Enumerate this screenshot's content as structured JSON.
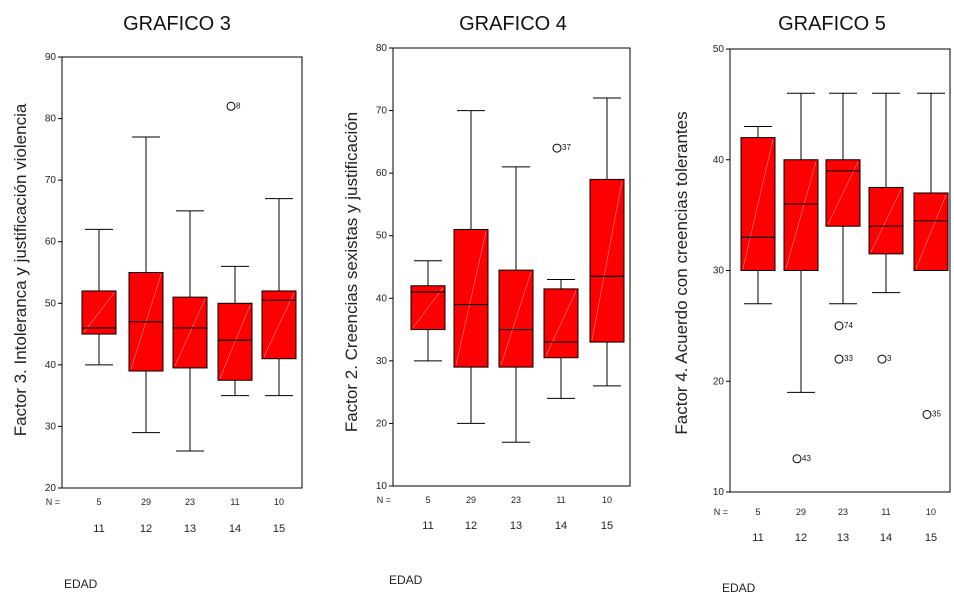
{
  "chart_data": [
    {
      "type": "boxplot",
      "title": "GRAFICO 3",
      "ylabel": "Factor 3. Intoleranca y justificación violencia",
      "xlabel": "EDAD",
      "n_label": "N =",
      "ylim": [
        20,
        90
      ],
      "yticks": [
        20,
        30,
        40,
        50,
        60,
        70,
        80,
        90
      ],
      "categories": [
        "11",
        "12",
        "13",
        "14",
        "15"
      ],
      "n": [
        "5",
        "29",
        "23",
        "11",
        "10"
      ],
      "boxes": [
        {
          "min": 40,
          "q1": 45,
          "median": 46,
          "q3": 52,
          "max": 62
        },
        {
          "min": 29,
          "q1": 39,
          "median": 47,
          "q3": 55,
          "max": 77
        },
        {
          "min": 26,
          "q1": 39.5,
          "median": 46,
          "q3": 51,
          "max": 65
        },
        {
          "min": 35,
          "q1": 37.5,
          "median": 44,
          "q3": 50,
          "max": 56
        },
        {
          "min": 35,
          "q1": 41,
          "median": 50.5,
          "q3": 52,
          "max": 67
        }
      ],
      "outliers": [
        {
          "category": "14",
          "value": 82,
          "label": "8"
        }
      ],
      "grid": false,
      "box_color": "#ff0000"
    },
    {
      "type": "boxplot",
      "title": "GRAFICO 4",
      "ylabel": "Factor 2. Creencias sexistas y justificación",
      "xlabel": "EDAD",
      "n_label": "N =",
      "ylim": [
        10,
        80
      ],
      "yticks": [
        10,
        20,
        30,
        40,
        50,
        60,
        70,
        80
      ],
      "categories": [
        "11",
        "12",
        "13",
        "14",
        "15"
      ],
      "n": [
        "5",
        "29",
        "23",
        "11",
        "10"
      ],
      "boxes": [
        {
          "min": 30,
          "q1": 35,
          "median": 41,
          "q3": 42,
          "max": 46
        },
        {
          "min": 20,
          "q1": 29,
          "median": 39,
          "q3": 51,
          "max": 70
        },
        {
          "min": 17,
          "q1": 29,
          "median": 35,
          "q3": 44.5,
          "max": 61
        },
        {
          "min": 24,
          "q1": 30.5,
          "median": 33,
          "q3": 41.5,
          "max": 43
        },
        {
          "min": 26,
          "q1": 33,
          "median": 43.5,
          "q3": 59,
          "max": 72
        }
      ],
      "outliers": [
        {
          "category": "14",
          "value": 64,
          "label": "37"
        }
      ],
      "grid": false,
      "box_color": "#ff0000"
    },
    {
      "type": "boxplot",
      "title": "GRAFICO 5",
      "ylabel": "Factor 4. Acuerdo con creencias tolerantes",
      "xlabel": "EDAD",
      "n_label": "N =",
      "ylim": [
        10,
        50
      ],
      "yticks": [
        10,
        20,
        30,
        40,
        50
      ],
      "categories": [
        "11",
        "12",
        "13",
        "14",
        "15"
      ],
      "n": [
        "5",
        "29",
        "23",
        "11",
        "10"
      ],
      "boxes": [
        {
          "min": 27,
          "q1": 30,
          "median": 33,
          "q3": 42,
          "max": 43
        },
        {
          "min": 19,
          "q1": 30,
          "median": 36,
          "q3": 40,
          "max": 46
        },
        {
          "min": 27,
          "q1": 34,
          "median": 39,
          "q3": 40,
          "max": 46
        },
        {
          "min": 28,
          "q1": 31.5,
          "median": 34,
          "q3": 37.5,
          "max": 46
        },
        {
          "min": 30,
          "q1": 30,
          "median": 34.5,
          "q3": 37,
          "max": 46
        }
      ],
      "outliers": [
        {
          "category": "12",
          "value": 13,
          "label": "43"
        },
        {
          "category": "13",
          "value": 25,
          "label": "74"
        },
        {
          "category": "13",
          "value": 22,
          "label": "33"
        },
        {
          "category": "14",
          "value": 22,
          "label": "3"
        },
        {
          "category": "15",
          "value": 17,
          "label": "35"
        }
      ],
      "grid": false,
      "box_color": "#ff0000"
    }
  ]
}
